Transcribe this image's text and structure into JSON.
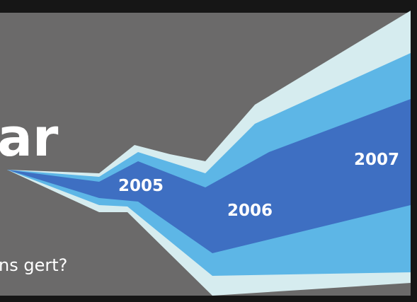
{
  "heading": "ar",
  "question": "ns gert?",
  "labels": [
    "2005",
    "2006",
    "2007"
  ]
}
